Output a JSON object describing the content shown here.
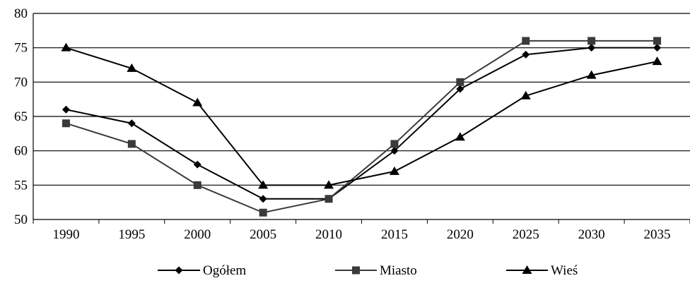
{
  "chart_data": {
    "type": "line",
    "title": "",
    "xlabel": "",
    "ylabel": "",
    "categories": [
      "1990",
      "1995",
      "2000",
      "2005",
      "2010",
      "2015",
      "2020",
      "2025",
      "2030",
      "2035"
    ],
    "ylim": [
      50,
      80
    ],
    "yticks": [
      50,
      55,
      60,
      65,
      70,
      75,
      80
    ],
    "grid": true,
    "legend_position": "bottom",
    "series": [
      {
        "name": "Ogółem",
        "marker": "diamond",
        "color": "#000000",
        "values": [
          66,
          64,
          58,
          53,
          53,
          60,
          69,
          74,
          75,
          75
        ]
      },
      {
        "name": "Miasto",
        "marker": "square",
        "color": "#3a3a3a",
        "values": [
          64,
          61,
          55,
          51,
          53,
          61,
          70,
          76,
          76,
          76
        ]
      },
      {
        "name": "Wieś",
        "marker": "triangle",
        "color": "#000000",
        "values": [
          75,
          72,
          67,
          55,
          55,
          57,
          62,
          68,
          71,
          73
        ]
      }
    ]
  }
}
